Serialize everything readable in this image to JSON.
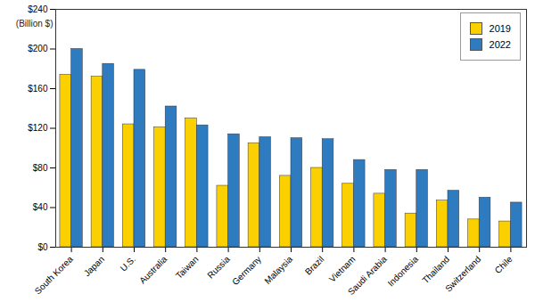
{
  "chart_data": {
    "type": "bar",
    "y_label": "(Billion $)",
    "categories": [
      "South Korea",
      "Japan",
      "U.S.",
      "Australia",
      "Taiwan",
      "Russia",
      "Germany",
      "Malaysia",
      "Brazil",
      "Vietnam",
      "Saudi Arabia",
      "Indonesia",
      "Thailand",
      "Switzerland",
      "Chile"
    ],
    "series": [
      {
        "name": "2019",
        "color": "#fad000",
        "values": [
          174,
          172,
          124,
          121,
          130,
          62,
          105,
          72,
          80,
          64,
          54,
          34,
          47,
          28,
          26
        ]
      },
      {
        "name": "2022",
        "color": "#2e7bbf",
        "values": [
          200,
          185,
          179,
          142,
          123,
          114,
          111,
          110,
          109,
          88,
          78,
          78,
          57,
          50,
          45
        ]
      }
    ],
    "ylim": [
      0,
      240
    ],
    "yticks": [
      {
        "value": 0,
        "label": "$0"
      },
      {
        "value": 40,
        "label": "$40"
      },
      {
        "value": 80,
        "label": "$80"
      },
      {
        "value": 120,
        "label": "$120"
      },
      {
        "value": 160,
        "label": "$160"
      },
      {
        "value": 200,
        "label": "$200"
      },
      {
        "value": 240,
        "label": "$240"
      }
    ],
    "grid": false,
    "legend": "top-right"
  }
}
